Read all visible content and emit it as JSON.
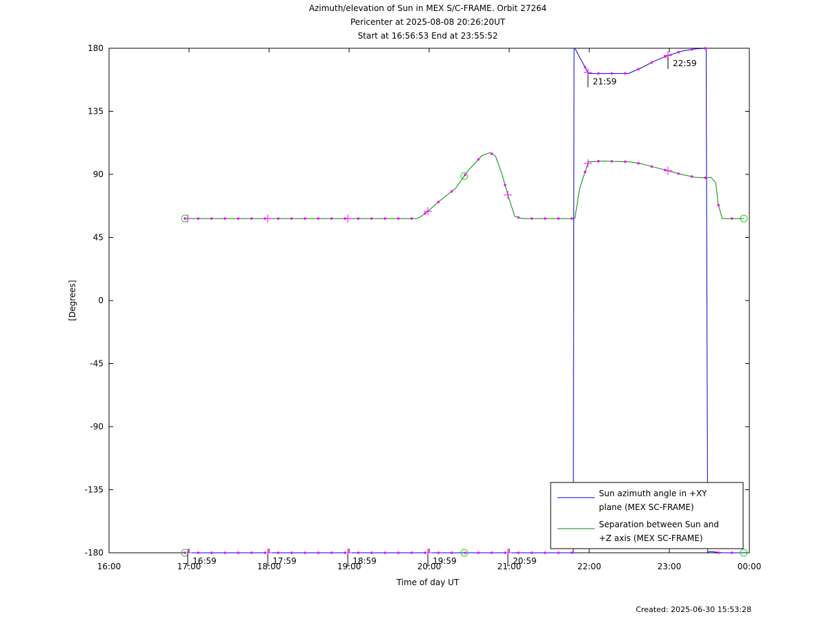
{
  "titles": {
    "line1": "Azimuth/elevation of Sun in MEX S/C-FRAME.  Orbit 27264",
    "line2": "Pericenter at 2025-08-08 20:26:20UT",
    "line3": "Start at 16:56:53 End at 23:55:52"
  },
  "created": "Created: 2025-06-30 15:53:28",
  "chart_data": {
    "type": "line",
    "title": "Azimuth/elevation of Sun in MEX S/C-FRAME.  Orbit 27264",
    "xlabel": "Time of day UT",
    "ylabel": "[Degrees]",
    "xlim": [
      16.0,
      24.0
    ],
    "ylim": [
      -180,
      180
    ],
    "x_ticks": [
      16,
      17,
      18,
      19,
      20,
      21,
      22,
      23,
      24
    ],
    "x_tick_labels": [
      "16:00",
      "17:00",
      "18:00",
      "19:00",
      "20:00",
      "21:00",
      "22:00",
      "23:00",
      "00:00"
    ],
    "y_ticks": [
      180,
      135,
      90,
      45,
      0,
      -45,
      -90,
      -135,
      -180
    ],
    "y_tick_labels": [
      "180",
      "135",
      "90",
      "45",
      "0",
      "-45",
      "-90",
      "-135",
      "-180"
    ],
    "legend_position": "bottom-right",
    "series": [
      {
        "name": "Sun azimuth angle in +XY plane (MEX SC-FRAME)",
        "legend_lines": [
          "Sun azimuth angle in +XY",
          "plane (MEX SC-FRAME)"
        ],
        "color": "#0000cc",
        "x": [
          16.948,
          21.8,
          21.81,
          21.82,
          21.99,
          22.15,
          22.33,
          22.49,
          22.65,
          22.82,
          22.99,
          23.16,
          23.32,
          23.46,
          23.48,
          23.5,
          23.66,
          23.82,
          23.931
        ],
        "y": [
          -180,
          -180,
          180,
          180,
          162,
          162,
          162,
          162,
          166,
          171,
          175,
          178,
          179.5,
          180,
          -180,
          -179,
          -180,
          -180,
          -180
        ]
      },
      {
        "name": "Separation between Sun and +Z axis (MEX SC-FRAME)",
        "legend_lines": [
          "Separation between Sun and",
          "+Z axis (MEX SC-FRAME)"
        ],
        "color": "#008800",
        "x": [
          16.948,
          17.5,
          18.0,
          18.5,
          19.0,
          19.5,
          19.85,
          19.9,
          19.99,
          20.15,
          20.33,
          20.49,
          20.66,
          20.76,
          20.83,
          20.91,
          20.99,
          21.07,
          21.16,
          21.3,
          21.82,
          21.88,
          21.99,
          22.16,
          22.5,
          22.66,
          22.82,
          22.99,
          23.15,
          23.32,
          23.46,
          23.52,
          23.58,
          23.61,
          23.66,
          23.82,
          23.931
        ],
        "y": [
          58.5,
          58.5,
          58.5,
          58.5,
          58.5,
          58.5,
          58.5,
          60,
          64,
          72,
          80,
          93,
          103.5,
          105.5,
          103,
          90,
          74,
          60,
          58.5,
          58.5,
          58.5,
          80,
          99,
          99.5,
          99,
          97.5,
          95,
          92.5,
          90,
          88,
          87.5,
          88,
          84,
          69,
          58.5,
          58.5,
          58.5
        ]
      }
    ],
    "annotations": [
      "16:59",
      "17:59",
      "18:59",
      "19:59",
      "20:59",
      "21:59",
      "22:59"
    ]
  }
}
